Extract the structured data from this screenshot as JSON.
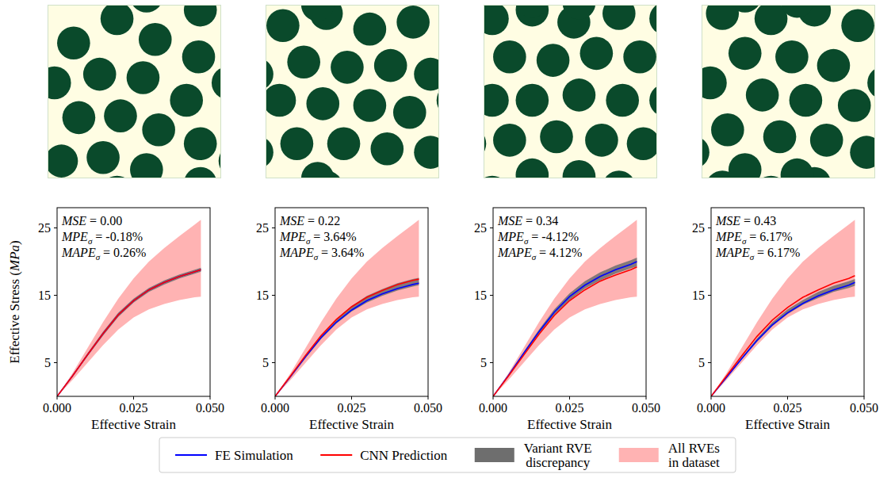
{
  "chart_data": {
    "type": "line",
    "x_label": "Effective Strain",
    "y_label": "Effective Stress (MPa)",
    "xlim": [
      0,
      0.05
    ],
    "xticks": [
      {
        "value": 0,
        "label": "0.000"
      },
      {
        "value": 0.025,
        "label": "0.025"
      },
      {
        "value": 0.05,
        "label": "0.050"
      }
    ],
    "ylim": [
      0,
      28
    ],
    "yticks": [
      5,
      15,
      25
    ],
    "legend": "bottom",
    "x": [
      0,
      0.005,
      0.01,
      0.015,
      0.02,
      0.025,
      0.03,
      0.035,
      0.04,
      0.045,
      0.047
    ],
    "series": [
      {
        "name": "FE Simulation",
        "color": "#0000ff",
        "type": "line"
      },
      {
        "name": "CNN Prediction",
        "color": "#ff0000",
        "type": "line"
      },
      {
        "name": "Variant RVE discrepancy",
        "color": "#6e6e6e",
        "type": "area"
      },
      {
        "name": "All RVEs in dataset",
        "color": "#ffb3b3",
        "type": "area"
      }
    ],
    "panels": [
      {
        "annotations": [
          {
            "label": "MSE",
            "text": "= 0.00"
          },
          {
            "label": "MPE",
            "subscript": "σ",
            "text": "= -0.18%"
          },
          {
            "label": "MAPE",
            "subscript": "σ",
            "text": "= 0.26%"
          }
        ],
        "series": [
          {
            "values": [
              0,
              3.0,
              6.2,
              9.3,
              12.1,
              14.2,
              15.8,
              16.9,
              17.8,
              18.5,
              18.8
            ]
          },
          {
            "values": [
              0,
              3.0,
              6.2,
              9.3,
              12.1,
              14.2,
              15.8,
              16.9,
              17.8,
              18.5,
              18.8
            ]
          },
          {
            "lower": [
              0,
              2.9,
              6.0,
              9.0,
              11.8,
              13.9,
              15.5,
              16.6,
              17.5,
              18.2,
              18.5
            ],
            "upper": [
              0,
              3.1,
              6.4,
              9.6,
              12.4,
              14.5,
              16.1,
              17.2,
              18.1,
              18.8,
              19.1
            ]
          },
          {
            "lower": [
              0,
              2.4,
              5.0,
              7.6,
              9.9,
              11.7,
              12.9,
              13.7,
              14.3,
              14.7,
              14.8
            ],
            "upper": [
              0,
              3.4,
              7.2,
              11.0,
              14.5,
              17.5,
              20.0,
              22.0,
              23.8,
              25.5,
              26.2
            ]
          }
        ]
      },
      {
        "annotations": [
          {
            "label": "MSE",
            "text": "= 0.22"
          },
          {
            "label": "MPE",
            "subscript": "σ",
            "text": "= 3.64%"
          },
          {
            "label": "MAPE",
            "subscript": "σ",
            "text": "= 3.64%"
          }
        ],
        "series": [
          {
            "values": [
              0,
              2.9,
              5.9,
              8.7,
              11.0,
              12.8,
              14.2,
              15.2,
              16.0,
              16.6,
              16.8
            ]
          },
          {
            "values": [
              0,
              3.0,
              6.1,
              9.0,
              11.4,
              13.3,
              14.7,
              15.7,
              16.6,
              17.2,
              17.4
            ]
          },
          {
            "lower": [
              0,
              2.8,
              5.7,
              8.5,
              10.8,
              12.6,
              13.9,
              14.9,
              15.7,
              16.3,
              16.5
            ],
            "upper": [
              0,
              3.0,
              6.2,
              9.1,
              11.5,
              13.4,
              14.9,
              15.9,
              16.8,
              17.4,
              17.6
            ]
          },
          {
            "lower": [
              0,
              2.4,
              5.0,
              7.6,
              9.9,
              11.7,
              12.9,
              13.7,
              14.3,
              14.7,
              14.8
            ],
            "upper": [
              0,
              3.4,
              7.2,
              11.0,
              14.5,
              17.5,
              20.0,
              22.0,
              23.8,
              25.5,
              26.2
            ]
          }
        ]
      },
      {
        "annotations": [
          {
            "label": "MSE",
            "text": "= 0.34"
          },
          {
            "label": "MPE",
            "subscript": "σ",
            "text": "= -4.12%"
          },
          {
            "label": "MAPE",
            "subscript": "σ",
            "text": "= 4.12%"
          }
        ],
        "series": [
          {
            "values": [
              0,
              3.1,
              6.4,
              9.6,
              12.5,
              14.8,
              16.5,
              17.8,
              18.8,
              19.6,
              20.0
            ]
          },
          {
            "values": [
              0,
              3.0,
              6.1,
              9.2,
              12.0,
              14.2,
              15.8,
              17.1,
              18.0,
              18.8,
              19.2
            ]
          },
          {
            "lower": [
              0,
              3.0,
              6.2,
              9.3,
              12.1,
              14.3,
              16.0,
              17.2,
              18.2,
              19.0,
              19.3
            ],
            "upper": [
              0,
              3.2,
              6.6,
              9.9,
              12.9,
              15.3,
              17.1,
              18.4,
              19.4,
              20.2,
              20.6
            ]
          },
          {
            "lower": [
              0,
              2.4,
              5.0,
              7.6,
              9.9,
              11.7,
              12.9,
              13.7,
              14.3,
              14.7,
              14.8
            ],
            "upper": [
              0,
              3.4,
              7.2,
              11.0,
              14.5,
              17.5,
              20.0,
              22.0,
              23.8,
              25.5,
              26.2
            ]
          }
        ]
      },
      {
        "annotations": [
          {
            "label": "MSE",
            "text": "= 0.43"
          },
          {
            "label": "MPE",
            "subscript": "σ",
            "text": "= 6.17%"
          },
          {
            "label": "MAPE",
            "subscript": "σ",
            "text": "= 6.17%"
          }
        ],
        "series": [
          {
            "values": [
              0,
              2.8,
              5.6,
              8.3,
              10.6,
              12.4,
              13.8,
              14.9,
              15.8,
              16.5,
              16.9
            ]
          },
          {
            "values": [
              0,
              3.0,
              6.0,
              8.9,
              11.3,
              13.2,
              14.7,
              15.8,
              16.8,
              17.5,
              17.9
            ]
          },
          {
            "lower": [
              0,
              2.7,
              5.5,
              8.1,
              10.4,
              12.2,
              13.6,
              14.6,
              15.5,
              16.1,
              16.4
            ],
            "upper": [
              0,
              2.9,
              5.8,
              8.6,
              11.0,
              12.9,
              14.3,
              15.5,
              16.4,
              17.1,
              17.4
            ]
          },
          {
            "lower": [
              0,
              2.4,
              5.0,
              7.6,
              9.9,
              11.7,
              12.9,
              13.7,
              14.3,
              14.7,
              14.8
            ],
            "upper": [
              0,
              3.4,
              7.2,
              11.0,
              14.5,
              17.5,
              20.0,
              22.0,
              23.8,
              25.5,
              26.2
            ]
          }
        ]
      }
    ]
  },
  "microstructures": {
    "fiber_radius": 0.095,
    "matrix_color": "#fffde3",
    "fiber_color": "#0a4a2b",
    "rves": [
      {
        "fibers": [
          [
            0.15,
            0.22
          ],
          [
            0.4,
            0.08
          ],
          [
            0.62,
            0.2
          ],
          [
            0.88,
            0.03
          ],
          [
            0.87,
            0.3
          ],
          [
            0.04,
            0.45
          ],
          [
            0.3,
            0.4
          ],
          [
            0.55,
            0.42
          ],
          [
            0.8,
            0.55
          ],
          [
            0.18,
            0.65
          ],
          [
            0.42,
            0.64
          ],
          [
            0.64,
            0.72
          ],
          [
            0.08,
            0.9
          ],
          [
            0.32,
            0.88
          ],
          [
            0.88,
            0.8
          ],
          [
            0.57,
            0.95
          ]
        ]
      },
      {
        "fibers": [
          [
            0.1,
            0.12
          ],
          [
            0.35,
            0.05
          ],
          [
            0.6,
            0.14
          ],
          [
            0.85,
            0.1
          ],
          [
            0.22,
            0.33
          ],
          [
            0.47,
            0.36
          ],
          [
            0.72,
            0.35
          ],
          [
            0.95,
            0.4
          ],
          [
            0.08,
            0.55
          ],
          [
            0.33,
            0.57
          ],
          [
            0.6,
            0.58
          ],
          [
            0.83,
            0.62
          ],
          [
            0.18,
            0.8
          ],
          [
            0.45,
            0.8
          ],
          [
            0.7,
            0.83
          ],
          [
            0.95,
            0.85
          ],
          [
            0.3,
            1.0
          ]
        ]
      },
      {
        "fibers": [
          [
            0.05,
            0.08
          ],
          [
            0.28,
            0.03
          ],
          [
            0.52,
            0.1
          ],
          [
            0.78,
            0.05
          ],
          [
            0.15,
            0.3
          ],
          [
            0.4,
            0.32
          ],
          [
            0.65,
            0.28
          ],
          [
            0.9,
            0.3
          ],
          [
            0.05,
            0.55
          ],
          [
            0.28,
            0.55
          ],
          [
            0.55,
            0.52
          ],
          [
            0.8,
            0.55
          ],
          [
            0.15,
            0.78
          ],
          [
            0.42,
            0.76
          ],
          [
            0.68,
            0.78
          ],
          [
            0.92,
            0.8
          ],
          [
            0.28,
            0.98
          ],
          [
            0.55,
            0.99
          ]
        ]
      },
      {
        "fibers": [
          [
            0.12,
            0.05
          ],
          [
            0.4,
            0.08
          ],
          [
            0.65,
            0.03
          ],
          [
            0.9,
            0.12
          ],
          [
            0.25,
            0.28
          ],
          [
            0.52,
            0.3
          ],
          [
            0.76,
            0.35
          ],
          [
            0.05,
            0.45
          ],
          [
            0.35,
            0.52
          ],
          [
            0.6,
            0.55
          ],
          [
            0.88,
            0.58
          ],
          [
            0.15,
            0.72
          ],
          [
            0.45,
            0.76
          ],
          [
            0.72,
            0.78
          ],
          [
            0.95,
            0.85
          ],
          [
            0.25,
            0.95
          ],
          [
            0.55,
            0.98
          ]
        ]
      }
    ]
  }
}
